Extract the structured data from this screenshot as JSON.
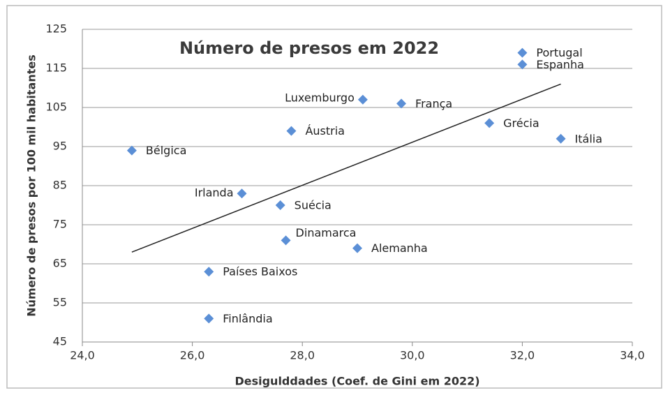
{
  "chart_data": {
    "type": "scatter",
    "title": "Número de presos em 2022",
    "x_label": "Desigulddades (Coef. de Gini em 2022)",
    "y_label": "Número de  presos por 100  mil habitantes",
    "labels": [
      "Portugal",
      "Espanha",
      "Luxemburgo",
      "França",
      "Grécia",
      "Itália",
      "Áustria",
      "Bélgica",
      "Irlanda",
      "Suécia",
      "Dinamarca",
      "Alemanha",
      "Países Baixos",
      "Finlândia"
    ],
    "x": [
      32.0,
      32.0,
      29.1,
      29.8,
      31.4,
      32.7,
      27.8,
      24.9,
      26.9,
      27.6,
      27.7,
      29.0,
      26.3,
      26.3
    ],
    "y": [
      119,
      116,
      107,
      106,
      101,
      97,
      99,
      94,
      83,
      80,
      71,
      69,
      63,
      51
    ],
    "color": "#5b8fd6",
    "trendline": {
      "x": [
        24.9,
        32.7
      ],
      "y": [
        68,
        111
      ],
      "color": "#222"
    },
    "xlim": [
      24,
      34
    ],
    "xticks": [
      {
        "value": 24,
        "label": "24,0"
      },
      {
        "value": 26,
        "label": "26,0"
      },
      {
        "value": 28,
        "label": "28,0"
      },
      {
        "value": 30,
        "label": "30,0"
      },
      {
        "value": 32,
        "label": "32,0"
      },
      {
        "value": 34,
        "label": "34,0"
      }
    ],
    "ylim": [
      45,
      125
    ],
    "yticks": [
      45,
      55,
      65,
      75,
      85,
      95,
      105,
      115,
      125
    ],
    "grid": true
  }
}
